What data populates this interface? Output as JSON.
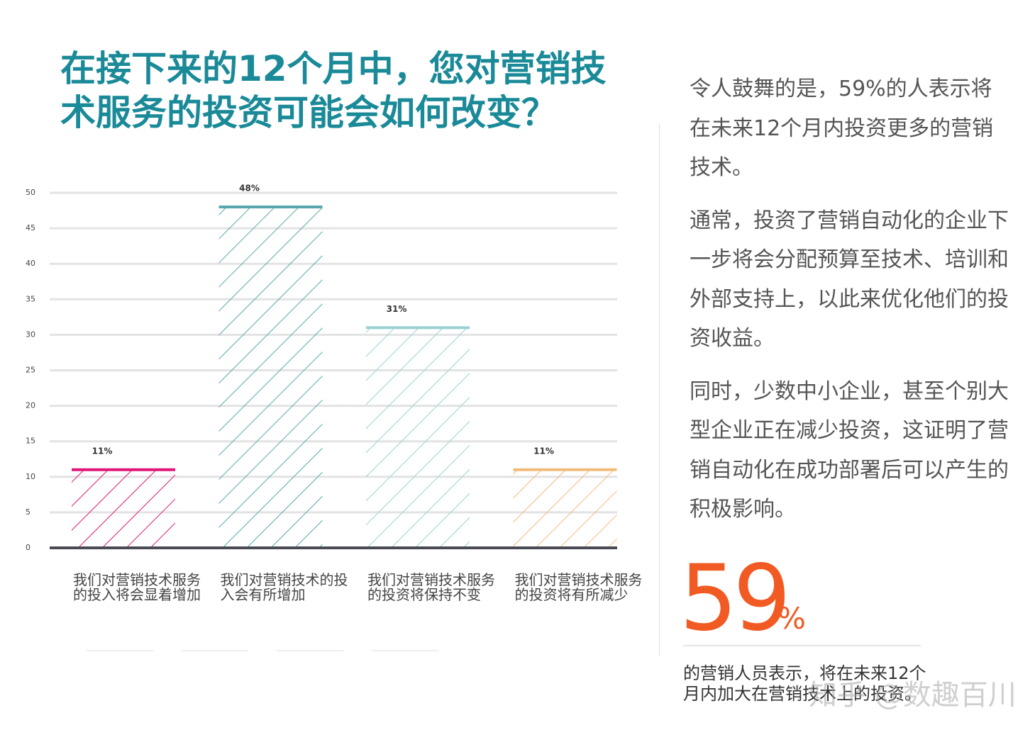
{
  "title": "在接下来的12个月中，您对营销技术服务的投资可能会如何改变？",
  "chart_data": {
    "type": "bar",
    "categories": [
      "我们对营销技术服务的投入将会显着增加",
      "我们对营销技术的投入会有所增加",
      "我们对营销技术服务的投资将保持不变",
      "我们对营销技术服务的投资将有所减少"
    ],
    "values": [
      11,
      48,
      31,
      11
    ],
    "value_labels": [
      "11%",
      "48%",
      "31%",
      "11%"
    ],
    "colors": [
      "#e0157a",
      "#5aa6ad",
      "#9ad0d3",
      "#f0bb7a"
    ],
    "ylim": [
      0,
      50
    ],
    "yticks": [
      0,
      5,
      10,
      15,
      20,
      25,
      30,
      35,
      40,
      45,
      50
    ],
    "grid": true
  },
  "sidebar": {
    "paragraphs": [
      "令人鼓舞的是，59%的人表示将在未来12个月内投资更多的营销技术。",
      "通常，投资了营销自动化的企业下一步将会分配预算至技术、培训和外部支持上，以此来优化他们的投资收益。",
      "同时，少数中小企业，甚至个别大型企业正在减少投资，这证明了营销自动化在成功部署后可以产生的积极影响。"
    ],
    "stat_number": "59",
    "stat_unit": "%",
    "caption": "的营销人员表示，将在未来12个月内加大在营销技术上的投资。"
  },
  "watermark": "知乎 @数趣百川"
}
